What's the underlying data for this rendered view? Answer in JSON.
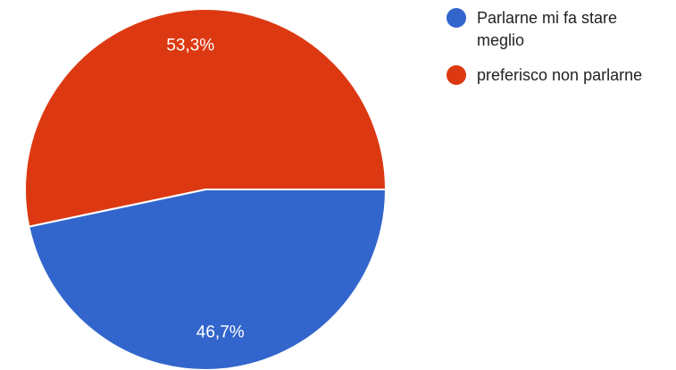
{
  "chart_data": {
    "type": "pie",
    "slices": [
      {
        "label": "Parlarne mi fa stare meglio",
        "value": 46.7,
        "value_label": "46,7%",
        "color": "#3366cc"
      },
      {
        "label": "preferisco non parlarne",
        "value": 53.3,
        "value_label": "53,3%",
        "color": "#dc3912"
      }
    ],
    "legend_position": "top-right"
  }
}
